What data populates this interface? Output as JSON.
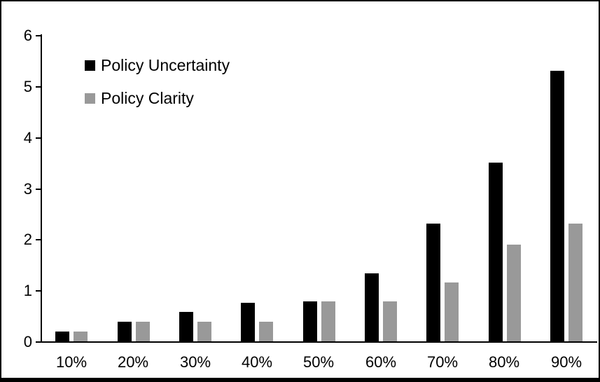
{
  "frame": {
    "background": "#ffffff",
    "border_color": "#000000"
  },
  "chart_data": {
    "type": "bar",
    "categories": [
      "10%",
      "20%",
      "30%",
      "40%",
      "50%",
      "60%",
      "70%",
      "80%",
      "90%"
    ],
    "series": [
      {
        "name": "Policy Uncertainty",
        "color": "#000000",
        "values": [
          0.19,
          0.38,
          0.57,
          0.76,
          0.78,
          1.33,
          2.3,
          3.5,
          5.3
        ]
      },
      {
        "name": "Policy Clarity",
        "color": "#999999",
        "values": [
          0.19,
          0.38,
          0.38,
          0.38,
          0.78,
          0.78,
          1.15,
          1.9,
          2.3
        ]
      }
    ],
    "ylim": [
      0,
      6
    ],
    "yticks": [
      0,
      1,
      2,
      3,
      4,
      5,
      6
    ],
    "grid": false,
    "legend": {
      "position": "top-left",
      "entries": [
        "Policy Uncertainty",
        "Policy Clarity"
      ]
    }
  }
}
